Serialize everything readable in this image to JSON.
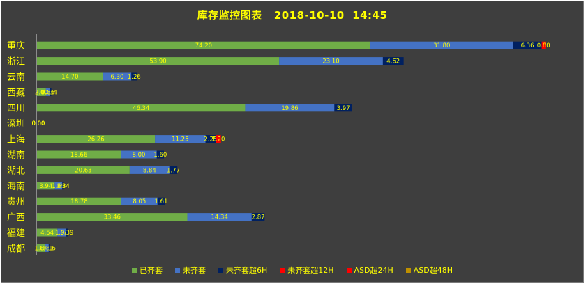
{
  "chart_data": {
    "type": "bar",
    "orientation": "horizontal",
    "stacked": true,
    "title": "库存监控图表   2018-10-10  14:45",
    "categories": [
      "重庆",
      "浙江",
      "云南",
      "西藏",
      "四川",
      "深圳",
      "上海",
      "湖南",
      "湖北",
      "海南",
      "贵州",
      "广西",
      "福建",
      "成都"
    ],
    "series": [
      {
        "name": "已齐套",
        "color": "#70ad47",
        "values": [
          74.2,
          53.9,
          14.7,
          2.0,
          46.34,
          0.0,
          26.26,
          18.66,
          20.63,
          3.94,
          18.78,
          33.46,
          4.54,
          1.8
        ]
      },
      {
        "name": "未齐套",
        "color": "#4472c4",
        "values": [
          31.8,
          23.1,
          6.3,
          0.86,
          19.86,
          0.0,
          11.25,
          8.0,
          8.84,
          1.69,
          8.05,
          14.34,
          1.94,
          0.81
        ]
      },
      {
        "name": "未齐套超6H",
        "color": "#002060",
        "values": [
          6.36,
          4.62,
          1.26,
          0.34,
          3.97,
          0.0,
          2.25,
          1.6,
          1.77,
          0.34,
          1.61,
          2.87,
          0.39,
          0.16
        ]
      },
      {
        "name": "未齐套超12H",
        "color": "#ff0000",
        "values": [
          0.8,
          0,
          0,
          0,
          0,
          0.0,
          1.2,
          0,
          0,
          0,
          0,
          0,
          0,
          0
        ]
      },
      {
        "name": "ASD超24H",
        "color": "#ff0000",
        "values": [
          0,
          0,
          0,
          0,
          0,
          0.0,
          0,
          0,
          0,
          0,
          0,
          0,
          0,
          0
        ]
      },
      {
        "name": "ASD超48H",
        "color": "#bf9000",
        "values": [
          0,
          0,
          0,
          0,
          0,
          0.0,
          0,
          0,
          0,
          0,
          0,
          0,
          0,
          0
        ]
      }
    ],
    "xlim": [
      0,
      130
    ],
    "grid": false,
    "legend": "bottom"
  }
}
